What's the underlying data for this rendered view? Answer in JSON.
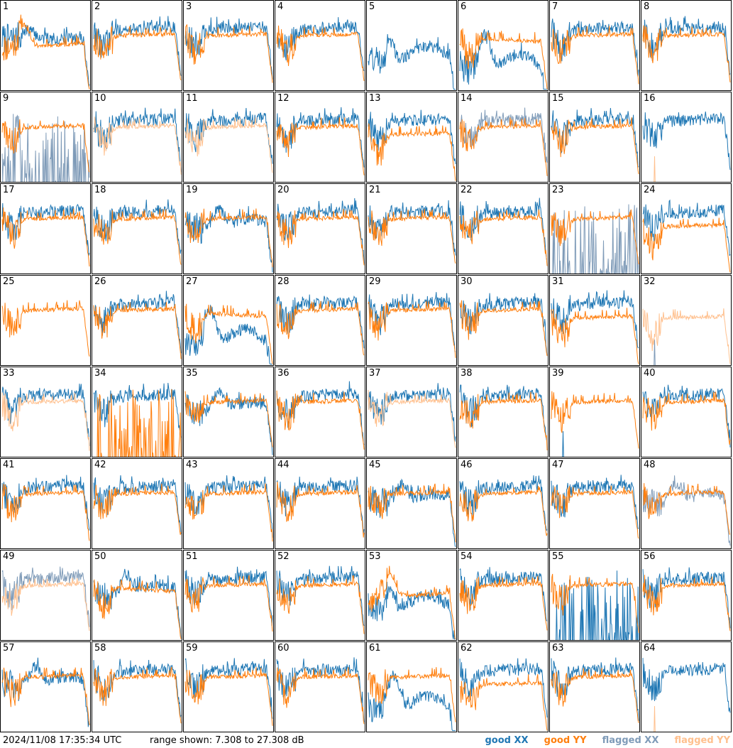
{
  "colors": {
    "good_xx": "#1f77b4",
    "good_yy": "#ff7f0e",
    "flagged_xx": "#7f9bb8",
    "flagged_yy": "#ffc08e"
  },
  "footer": {
    "timestamp": "2024/11/08 17:35:34 UTC",
    "range_text": "range shown: 7.308 to 27.308 dB"
  },
  "legend": {
    "good_xx": "good XX",
    "good_yy": "good YY",
    "flagged_xx": "flagged XX",
    "flagged_yy": "flagged YY"
  },
  "chart_data": {
    "type": "line",
    "description_units": "dB",
    "ylim": [
      7.308,
      27.308
    ],
    "panels": [
      {
        "id": "1",
        "xx": "good",
        "yy": "good",
        "xx_shape": "bump",
        "yy_shape": "dip"
      },
      {
        "id": "2",
        "xx": "good",
        "yy": "good",
        "xx_shape": "rising",
        "yy_shape": "flat"
      },
      {
        "id": "3",
        "xx": "good",
        "yy": "good",
        "xx_shape": "rising",
        "yy_shape": "flat"
      },
      {
        "id": "4",
        "xx": "good",
        "yy": "good",
        "xx_shape": "rising",
        "yy_shape": "flat"
      },
      {
        "id": "5",
        "xx": "good",
        "yy": "absent",
        "xx_shape": "wave",
        "yy_shape": "none"
      },
      {
        "id": "6",
        "xx": "good",
        "yy": "good",
        "xx_shape": "deepwave",
        "yy_shape": "flathigh"
      },
      {
        "id": "7",
        "xx": "good",
        "yy": "good",
        "xx_shape": "rising",
        "yy_shape": "flat"
      },
      {
        "id": "8",
        "xx": "good",
        "yy": "good",
        "xx_shape": "rising",
        "yy_shape": "flat"
      },
      {
        "id": "9",
        "xx": "flagged",
        "yy": "good",
        "xx_shape": "spikes",
        "yy_shape": "flat"
      },
      {
        "id": "10",
        "xx": "good",
        "yy": "flagged",
        "xx_shape": "rising",
        "yy_shape": "flat"
      },
      {
        "id": "11",
        "xx": "good",
        "yy": "flagged",
        "xx_shape": "rising",
        "yy_shape": "flat"
      },
      {
        "id": "12",
        "xx": "good",
        "yy": "good",
        "xx_shape": "rising",
        "yy_shape": "flat"
      },
      {
        "id": "13",
        "xx": "good",
        "yy": "good",
        "xx_shape": "rising",
        "yy_shape": "low"
      },
      {
        "id": "14",
        "xx": "flagged",
        "yy": "good",
        "xx_shape": "rising",
        "yy_shape": "flat"
      },
      {
        "id": "15",
        "xx": "good",
        "yy": "good",
        "xx_shape": "rising",
        "yy_shape": "flat"
      },
      {
        "id": "16",
        "xx": "good",
        "yy": "flagged",
        "xx_shape": "rising",
        "yy_shape": "bottom"
      },
      {
        "id": "17",
        "xx": "good",
        "yy": "good",
        "xx_shape": "rising",
        "yy_shape": "flat"
      },
      {
        "id": "18",
        "xx": "good",
        "yy": "good",
        "xx_shape": "rising",
        "yy_shape": "flat"
      },
      {
        "id": "19",
        "xx": "good",
        "yy": "good",
        "xx_shape": "dipwave",
        "yy_shape": "flat"
      },
      {
        "id": "20",
        "xx": "good",
        "yy": "good",
        "xx_shape": "rising",
        "yy_shape": "flat"
      },
      {
        "id": "21",
        "xx": "good",
        "yy": "good",
        "xx_shape": "rising",
        "yy_shape": "flat"
      },
      {
        "id": "22",
        "xx": "good",
        "yy": "good",
        "xx_shape": "rising",
        "yy_shape": "flat"
      },
      {
        "id": "23",
        "xx": "flagged",
        "yy": "good",
        "xx_shape": "spikes",
        "yy_shape": "flat"
      },
      {
        "id": "24",
        "xx": "good",
        "yy": "good",
        "xx_shape": "rising",
        "yy_shape": "low"
      },
      {
        "id": "25",
        "xx": "absent",
        "yy": "good",
        "xx_shape": "none",
        "yy_shape": "flat"
      },
      {
        "id": "26",
        "xx": "good",
        "yy": "good",
        "xx_shape": "rising",
        "yy_shape": "flat"
      },
      {
        "id": "27",
        "xx": "good",
        "yy": "good",
        "xx_shape": "deepwave",
        "yy_shape": "flathigh"
      },
      {
        "id": "28",
        "xx": "good",
        "yy": "good",
        "xx_shape": "rising",
        "yy_shape": "flat"
      },
      {
        "id": "29",
        "xx": "good",
        "yy": "good",
        "xx_shape": "rising",
        "yy_shape": "flat"
      },
      {
        "id": "30",
        "xx": "good",
        "yy": "good",
        "xx_shape": "rising",
        "yy_shape": "flat"
      },
      {
        "id": "31",
        "xx": "good",
        "yy": "good",
        "xx_shape": "rising",
        "yy_shape": "low"
      },
      {
        "id": "32",
        "xx": "flagged",
        "yy": "flagged",
        "xx_shape": "bottom",
        "yy_shape": "low"
      },
      {
        "id": "33",
        "xx": "good",
        "yy": "flagged",
        "xx_shape": "rising",
        "yy_shape": "flat"
      },
      {
        "id": "34",
        "xx": "good",
        "yy": "good",
        "xx_shape": "rising",
        "yy_shape": "spikes"
      },
      {
        "id": "35",
        "xx": "good",
        "yy": "good",
        "xx_shape": "dipwave",
        "yy_shape": "flat"
      },
      {
        "id": "36",
        "xx": "good",
        "yy": "good",
        "xx_shape": "rising",
        "yy_shape": "flat"
      },
      {
        "id": "37",
        "xx": "good",
        "yy": "flagged",
        "xx_shape": "rising",
        "yy_shape": "flat"
      },
      {
        "id": "38",
        "xx": "good",
        "yy": "good",
        "xx_shape": "rising",
        "yy_shape": "flat"
      },
      {
        "id": "39",
        "xx": "good",
        "yy": "good",
        "xx_shape": "bottom",
        "yy_shape": "flat"
      },
      {
        "id": "40",
        "xx": "good",
        "yy": "good",
        "xx_shape": "rising",
        "yy_shape": "flat"
      },
      {
        "id": "41",
        "xx": "good",
        "yy": "good",
        "xx_shape": "rising",
        "yy_shape": "flat"
      },
      {
        "id": "42",
        "xx": "good",
        "yy": "good",
        "xx_shape": "rising",
        "yy_shape": "flat"
      },
      {
        "id": "43",
        "xx": "good",
        "yy": "good",
        "xx_shape": "rising",
        "yy_shape": "flat"
      },
      {
        "id": "44",
        "xx": "good",
        "yy": "good",
        "xx_shape": "rising",
        "yy_shape": "flat"
      },
      {
        "id": "45",
        "xx": "good",
        "yy": "good",
        "xx_shape": "dipwave",
        "yy_shape": "flat"
      },
      {
        "id": "46",
        "xx": "good",
        "yy": "good",
        "xx_shape": "rising",
        "yy_shape": "flat"
      },
      {
        "id": "47",
        "xx": "good",
        "yy": "good",
        "xx_shape": "rising",
        "yy_shape": "flat"
      },
      {
        "id": "48",
        "xx": "flagged",
        "yy": "good",
        "xx_shape": "dipwave",
        "yy_shape": "flat"
      },
      {
        "id": "49",
        "xx": "flagged",
        "yy": "flagged",
        "xx_shape": "rising",
        "yy_shape": "flat"
      },
      {
        "id": "50",
        "xx": "good",
        "yy": "good",
        "xx_shape": "dipwave",
        "yy_shape": "flathigh"
      },
      {
        "id": "51",
        "xx": "good",
        "yy": "good",
        "xx_shape": "rising",
        "yy_shape": "flat"
      },
      {
        "id": "52",
        "xx": "good",
        "yy": "good",
        "xx_shape": "rising",
        "yy_shape": "flat"
      },
      {
        "id": "53",
        "xx": "good",
        "yy": "good",
        "xx_shape": "wave",
        "yy_shape": "dip"
      },
      {
        "id": "54",
        "xx": "good",
        "yy": "good",
        "xx_shape": "rising",
        "yy_shape": "flat"
      },
      {
        "id": "55",
        "xx": "good",
        "yy": "good",
        "xx_shape": "spikes",
        "yy_shape": "flat"
      },
      {
        "id": "56",
        "xx": "good",
        "yy": "good",
        "xx_shape": "rising",
        "yy_shape": "flat"
      },
      {
        "id": "57",
        "xx": "good",
        "yy": "good",
        "xx_shape": "dipwave",
        "yy_shape": "flat"
      },
      {
        "id": "58",
        "xx": "good",
        "yy": "good",
        "xx_shape": "rising",
        "yy_shape": "flat"
      },
      {
        "id": "59",
        "xx": "good",
        "yy": "good",
        "xx_shape": "rising",
        "yy_shape": "flat"
      },
      {
        "id": "60",
        "xx": "good",
        "yy": "good",
        "xx_shape": "rising",
        "yy_shape": "flat"
      },
      {
        "id": "61",
        "xx": "good",
        "yy": "good",
        "xx_shape": "deepwave",
        "yy_shape": "flat"
      },
      {
        "id": "62",
        "xx": "good",
        "yy": "good",
        "xx_shape": "rising",
        "yy_shape": "low"
      },
      {
        "id": "63",
        "xx": "good",
        "yy": "good",
        "xx_shape": "rising",
        "yy_shape": "flat"
      },
      {
        "id": "64",
        "xx": "good",
        "yy": "flagged",
        "xx_shape": "rising",
        "yy_shape": "bottom"
      }
    ]
  }
}
